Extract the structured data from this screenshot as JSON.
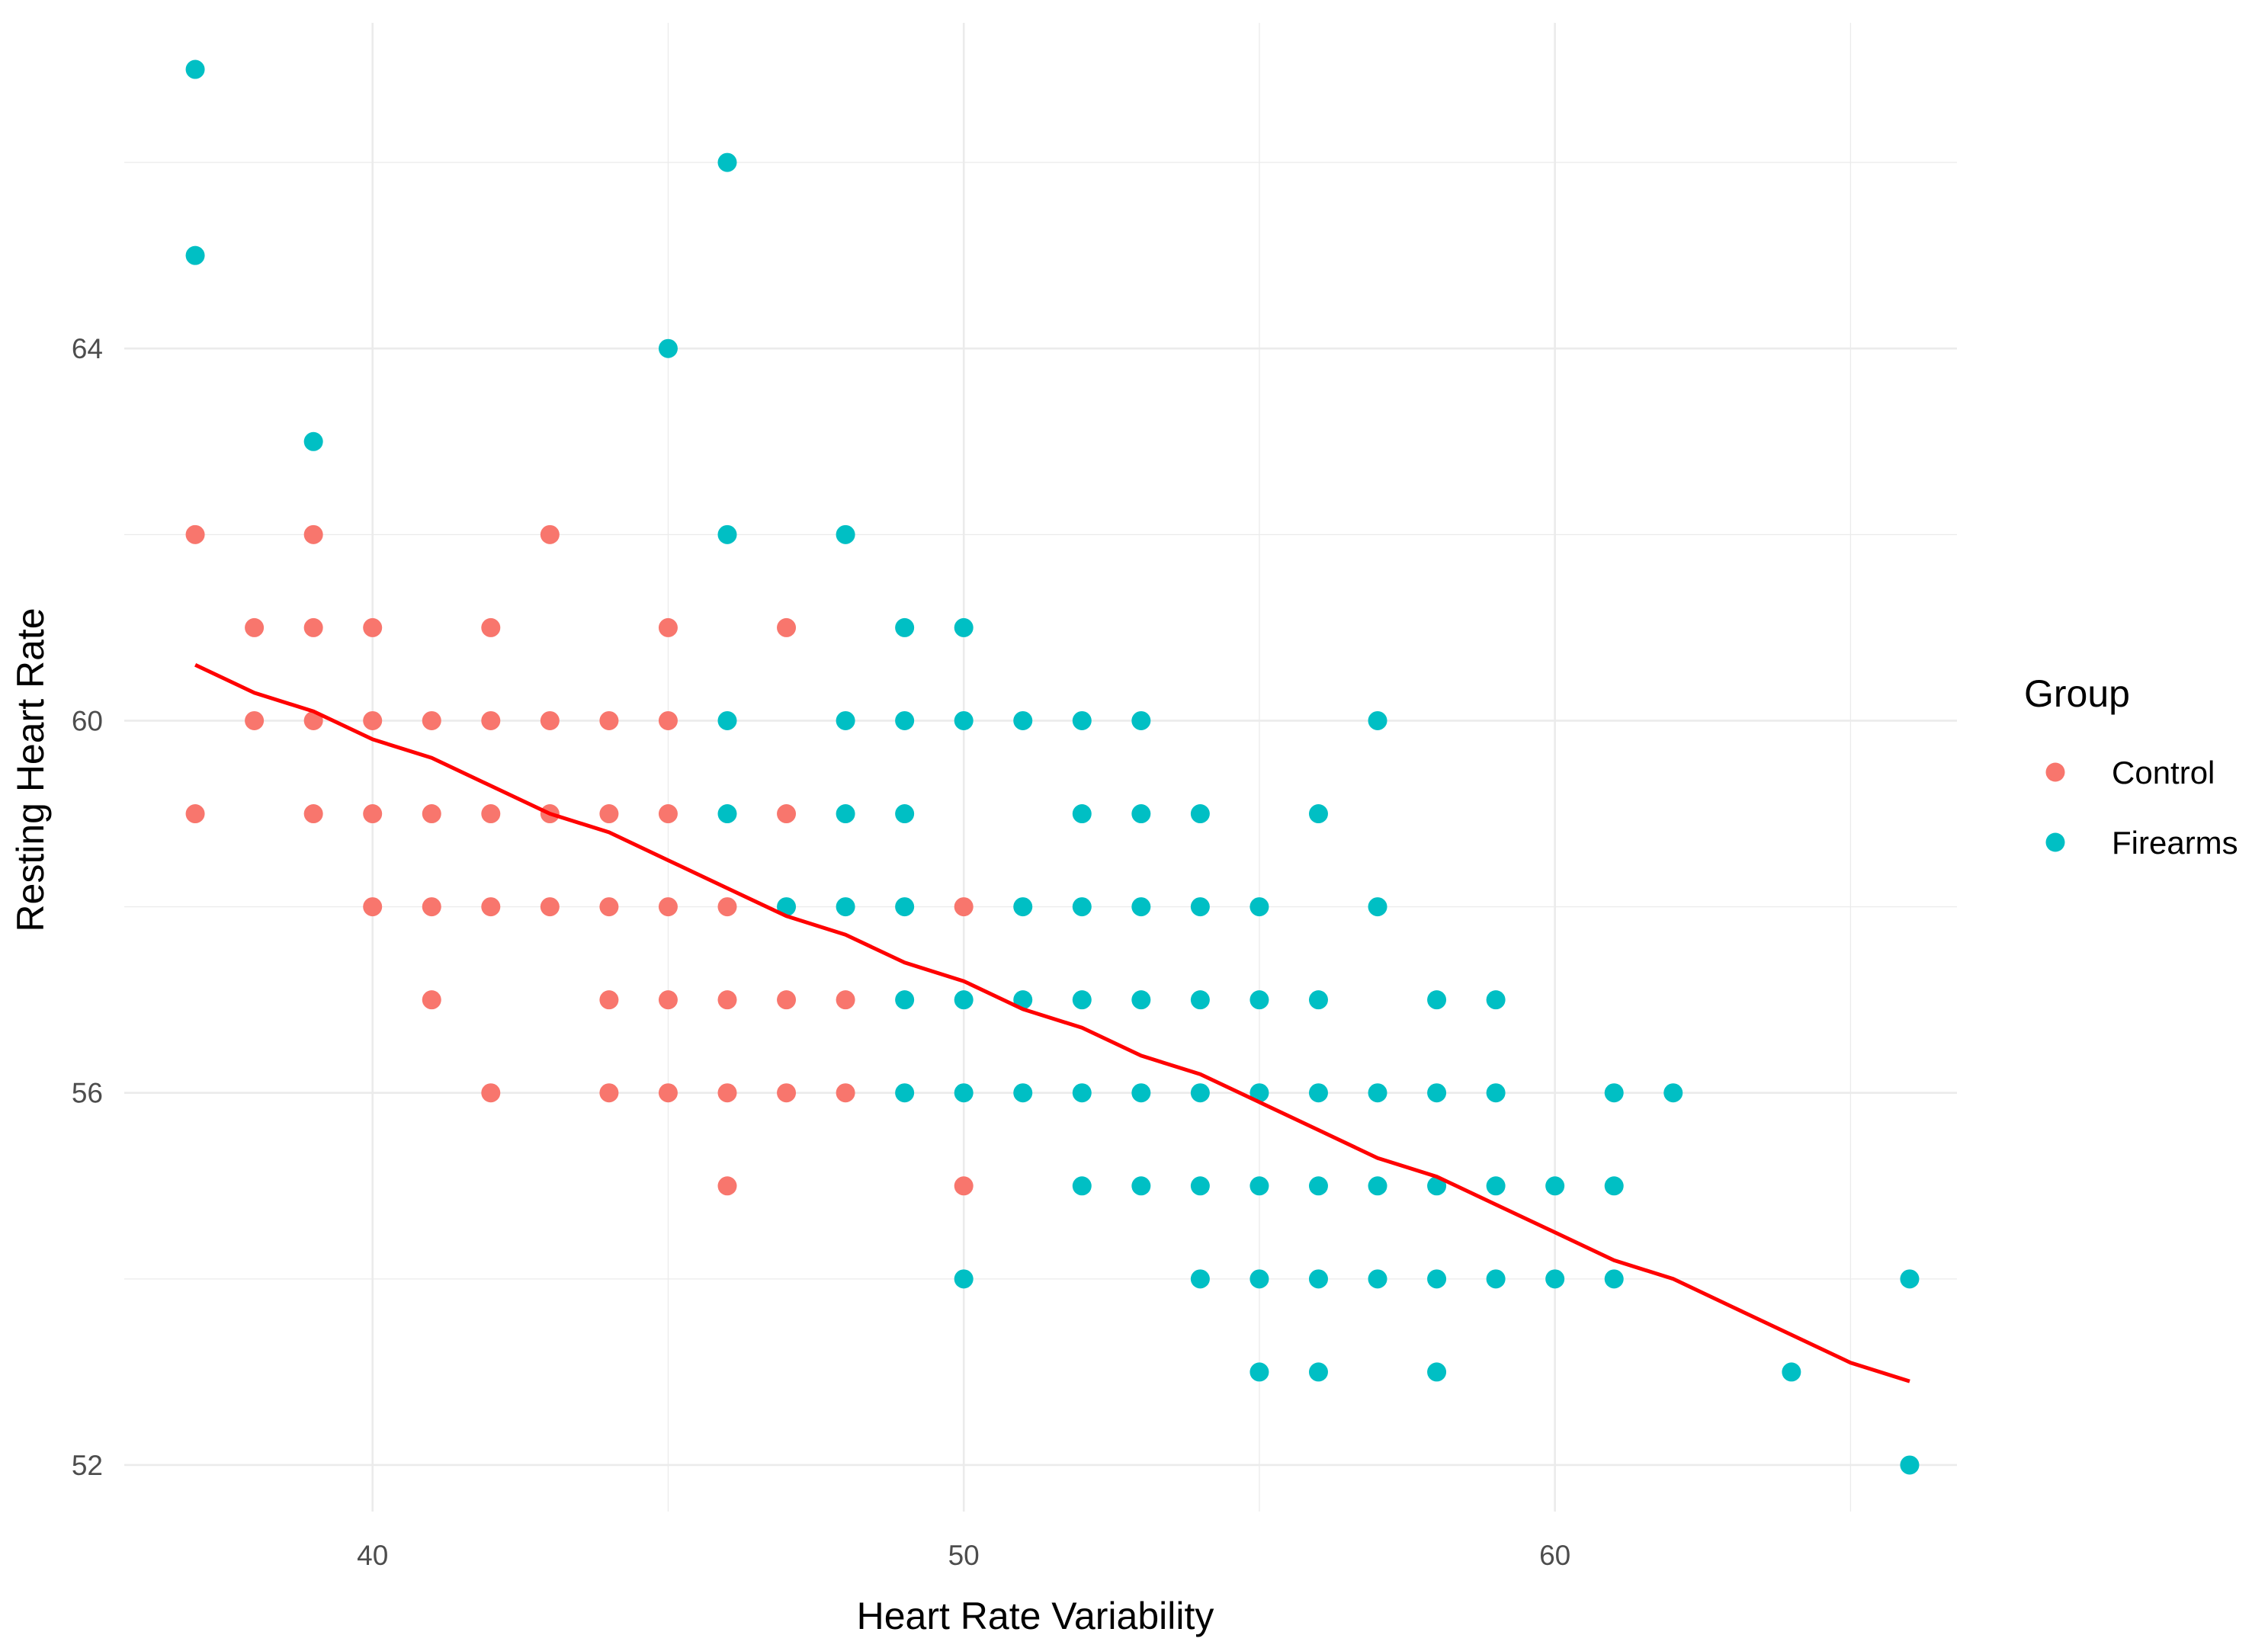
{
  "chart_data": {
    "type": "scatter",
    "title": "",
    "xlabel": "Heart Rate Variability",
    "ylabel": "Resting Heart Rate",
    "xlim": [
      35.8,
      66.8
    ],
    "ylim": [
      51.5,
      67.5
    ],
    "x_ticks": [
      40,
      50,
      60
    ],
    "y_ticks": [
      52,
      56,
      60,
      64
    ],
    "x_minor": [
      35,
      45,
      55,
      65
    ],
    "y_minor": [
      54,
      58,
      62,
      66
    ],
    "grid": true,
    "legend": {
      "title": "Group",
      "position": "right",
      "entries": [
        {
          "name": "Control",
          "color": "#F8766D"
        },
        {
          "name": "Firearms",
          "color": "#00BFC4"
        }
      ]
    },
    "series": [
      {
        "name": "Control",
        "color": "#F8766D",
        "points": [
          [
            37,
            62
          ],
          [
            37,
            59
          ],
          [
            38,
            61
          ],
          [
            38,
            60
          ],
          [
            39,
            62
          ],
          [
            39,
            61
          ],
          [
            39,
            60
          ],
          [
            39,
            59
          ],
          [
            40,
            61
          ],
          [
            40,
            60
          ],
          [
            40,
            59
          ],
          [
            40,
            58
          ],
          [
            41,
            60
          ],
          [
            41,
            59
          ],
          [
            41,
            58
          ],
          [
            41,
            57
          ],
          [
            42,
            61
          ],
          [
            42,
            60
          ],
          [
            42,
            59
          ],
          [
            42,
            58
          ],
          [
            42,
            56
          ],
          [
            43,
            62
          ],
          [
            43,
            60
          ],
          [
            43,
            59
          ],
          [
            43,
            58
          ],
          [
            44,
            60
          ],
          [
            44,
            59
          ],
          [
            44,
            58
          ],
          [
            44,
            57
          ],
          [
            44,
            56
          ],
          [
            45,
            61
          ],
          [
            45,
            60
          ],
          [
            45,
            59
          ],
          [
            45,
            58
          ],
          [
            45,
            57
          ],
          [
            45,
            56
          ],
          [
            46,
            58
          ],
          [
            46,
            57
          ],
          [
            46,
            56
          ],
          [
            46,
            55
          ],
          [
            47,
            61
          ],
          [
            47,
            59
          ],
          [
            47,
            57
          ],
          [
            47,
            56
          ],
          [
            48,
            57
          ],
          [
            48,
            56
          ],
          [
            50,
            58
          ],
          [
            50,
            55
          ]
        ]
      },
      {
        "name": "Firearms",
        "color": "#00BFC4",
        "points": [
          [
            37,
            67
          ],
          [
            37,
            65
          ],
          [
            39,
            63
          ],
          [
            45,
            64
          ],
          [
            46,
            66
          ],
          [
            46,
            62
          ],
          [
            46,
            60
          ],
          [
            46,
            59
          ],
          [
            47,
            58
          ],
          [
            48,
            62
          ],
          [
            48,
            60
          ],
          [
            48,
            59
          ],
          [
            48,
            58
          ],
          [
            49,
            61
          ],
          [
            49,
            60
          ],
          [
            49,
            59
          ],
          [
            49,
            58
          ],
          [
            49,
            57
          ],
          [
            49,
            56
          ],
          [
            50,
            61
          ],
          [
            50,
            60
          ],
          [
            50,
            57
          ],
          [
            50,
            56
          ],
          [
            50,
            54
          ],
          [
            51,
            60
          ],
          [
            51,
            58
          ],
          [
            51,
            57
          ],
          [
            51,
            56
          ],
          [
            52,
            60
          ],
          [
            52,
            59
          ],
          [
            52,
            58
          ],
          [
            52,
            57
          ],
          [
            52,
            56
          ],
          [
            52,
            55
          ],
          [
            53,
            60
          ],
          [
            53,
            59
          ],
          [
            53,
            58
          ],
          [
            53,
            57
          ],
          [
            53,
            56
          ],
          [
            53,
            55
          ],
          [
            54,
            59
          ],
          [
            54,
            58
          ],
          [
            54,
            57
          ],
          [
            54,
            56
          ],
          [
            54,
            55
          ],
          [
            54,
            54
          ],
          [
            55,
            58
          ],
          [
            55,
            57
          ],
          [
            55,
            56
          ],
          [
            55,
            55
          ],
          [
            55,
            54
          ],
          [
            55,
            53
          ],
          [
            56,
            59
          ],
          [
            56,
            57
          ],
          [
            56,
            56
          ],
          [
            56,
            55
          ],
          [
            56,
            54
          ],
          [
            56,
            53
          ],
          [
            57,
            60
          ],
          [
            57,
            58
          ],
          [
            57,
            56
          ],
          [
            57,
            55
          ],
          [
            57,
            54
          ],
          [
            58,
            57
          ],
          [
            58,
            56
          ],
          [
            58,
            55
          ],
          [
            58,
            54
          ],
          [
            58,
            53
          ],
          [
            59,
            57
          ],
          [
            59,
            56
          ],
          [
            59,
            55
          ],
          [
            59,
            54
          ],
          [
            60,
            55
          ],
          [
            60,
            54
          ],
          [
            61,
            56
          ],
          [
            61,
            55
          ],
          [
            61,
            54
          ],
          [
            62,
            56
          ],
          [
            64,
            53
          ],
          [
            66,
            54
          ],
          [
            66,
            52
          ]
        ]
      }
    ],
    "trend_line": {
      "color": "#FF0000",
      "points": [
        [
          37,
          60.6
        ],
        [
          38,
          60.3
        ],
        [
          39,
          60.1
        ],
        [
          40,
          59.8
        ],
        [
          41,
          59.6
        ],
        [
          42,
          59.3
        ],
        [
          43,
          59.0
        ],
        [
          44,
          58.8
        ],
        [
          45,
          58.5
        ],
        [
          46,
          58.2
        ],
        [
          47,
          57.9
        ],
        [
          48,
          57.7
        ],
        [
          49,
          57.4
        ],
        [
          50,
          57.2
        ],
        [
          51,
          56.9
        ],
        [
          52,
          56.7
        ],
        [
          53,
          56.4
        ],
        [
          54,
          56.2
        ],
        [
          55,
          55.9
        ],
        [
          56,
          55.6
        ],
        [
          57,
          55.3
        ],
        [
          58,
          55.1
        ],
        [
          59,
          54.8
        ],
        [
          60,
          54.5
        ],
        [
          61,
          54.2
        ],
        [
          62,
          54.0
        ],
        [
          63,
          53.7
        ],
        [
          64,
          53.4
        ],
        [
          65,
          53.1
        ],
        [
          66,
          52.9
        ]
      ]
    }
  }
}
